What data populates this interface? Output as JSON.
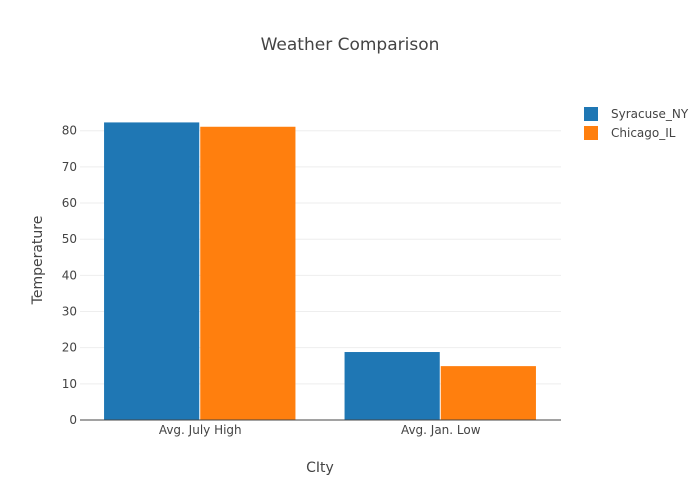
{
  "chart_data": {
    "type": "bar",
    "title": "Weather Comparison",
    "xlabel": "CIty",
    "ylabel": "Temperature",
    "categories": [
      "Avg. July High",
      "Avg. Jan. Low"
    ],
    "series": [
      {
        "name": "Syracuse_NY",
        "values": [
          82.3,
          18.8
        ],
        "color": "#1f77b4"
      },
      {
        "name": "Chicago_IL",
        "values": [
          81.1,
          14.9
        ],
        "color": "#ff7f0e"
      }
    ],
    "ylim": [
      0,
      88.5
    ],
    "yticks": [
      "0",
      "10",
      "20",
      "30",
      "40",
      "50",
      "60",
      "70",
      "80"
    ],
    "grid": true,
    "legend_position": "top-right"
  }
}
